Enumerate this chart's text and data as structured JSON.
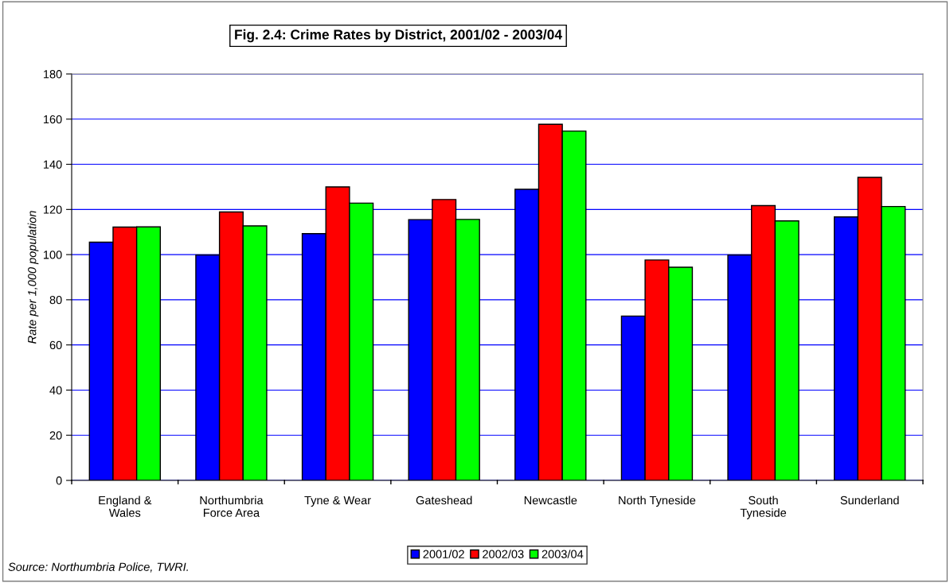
{
  "chart_data": {
    "type": "bar",
    "title": "Fig. 2.4: Crime Rates by District, 2001/02 - 2003/04",
    "ylabel": "Rate per 1,000 population",
    "categories": [
      "England &\nWales",
      "Northumbria\nForce Area",
      "Tyne & Wear",
      "Gateshead",
      "Newcastle",
      "North Tyneside",
      "South\nTyneside",
      "Sunderland"
    ],
    "series": [
      {
        "name": "2001/02",
        "color": "#0000ff",
        "values": [
          105.5,
          99.8,
          109.3,
          115.5,
          128.9,
          72.8,
          99.8,
          116.7
        ]
      },
      {
        "name": "2002/03",
        "color": "#ff0000",
        "values": [
          112.2,
          118.9,
          130.0,
          124.4,
          157.7,
          97.6,
          121.7,
          134.2
        ]
      },
      {
        "name": "2003/04",
        "color": "#00ff00",
        "values": [
          112.3,
          112.7,
          122.8,
          115.6,
          154.7,
          94.4,
          114.9,
          121.3
        ]
      }
    ],
    "ylim": [
      0,
      180
    ],
    "yticks": [
      0,
      20,
      40,
      60,
      80,
      100,
      120,
      140,
      160,
      180
    ],
    "grid": "y",
    "legend": "bottom",
    "annotations": [
      "Source: Northumbria Police, TWRI."
    ]
  }
}
